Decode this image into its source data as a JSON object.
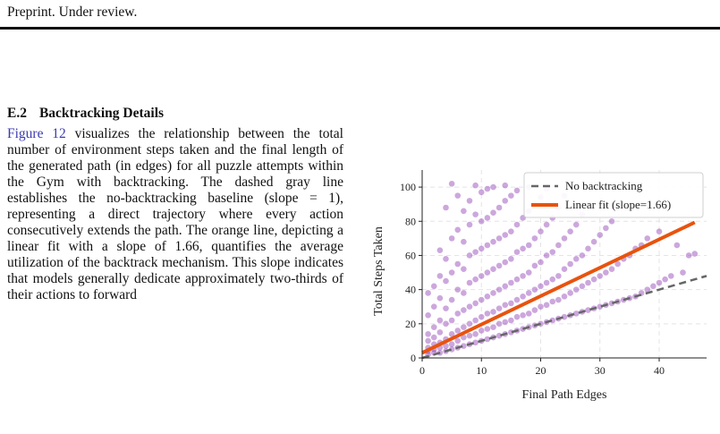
{
  "page": {
    "header": "Preprint. Under review.",
    "section": {
      "number": "E.2",
      "title": "Backtracking Details"
    },
    "body": {
      "figure_ref": "Figure 12",
      "text": " visualizes the relationship between the total number of environment steps taken and the final length of the generated path (in edges) for all puzzle attempts within the Gym with backtracking. The dashed gray line establishes the no-backtracking baseline (slope = 1), representing a direct trajectory where every action consecutively extends the path. The orange line, depicting a linear fit with a slope of 1.66, quantifies the average utilization of the backtrack mechanism. This slope indicates that models generally dedicate approximately two-thirds of their actions to forward"
    }
  },
  "colors": {
    "points": "#8e3cb4",
    "fit_line": "#e8530e",
    "baseline": "#666666",
    "link": "#3b3bb0"
  },
  "chart_data": {
    "type": "scatter",
    "xlabel": "Final Path Edges",
    "ylabel": "Total Steps Taken",
    "xlim": [
      0,
      48
    ],
    "ylim": [
      0,
      110
    ],
    "xticks": [
      0,
      10,
      20,
      30,
      40
    ],
    "yticks": [
      0,
      20,
      40,
      60,
      80,
      100
    ],
    "grid": true,
    "legend_position": "top-right",
    "series": [
      {
        "name": "No backtracking",
        "kind": "line",
        "style": "dashed",
        "slope": 1,
        "intercept": 0,
        "x_range": [
          0,
          48
        ]
      },
      {
        "name": "Linear fit (slope=1.66)",
        "kind": "line",
        "style": "solid",
        "slope": 1.66,
        "intercept": 3,
        "x_range": [
          0,
          46
        ]
      }
    ],
    "points": [
      [
        1,
        2
      ],
      [
        1,
        4
      ],
      [
        1,
        6
      ],
      [
        1,
        10
      ],
      [
        1,
        14
      ],
      [
        1,
        25
      ],
      [
        1,
        38
      ],
      [
        2,
        3
      ],
      [
        2,
        5
      ],
      [
        2,
        8
      ],
      [
        2,
        12
      ],
      [
        2,
        18
      ],
      [
        2,
        30
      ],
      [
        2,
        42
      ],
      [
        3,
        3
      ],
      [
        3,
        6
      ],
      [
        3,
        9
      ],
      [
        3,
        15
      ],
      [
        3,
        22
      ],
      [
        3,
        35
      ],
      [
        3,
        48
      ],
      [
        3,
        63
      ],
      [
        4,
        4
      ],
      [
        4,
        7
      ],
      [
        4,
        11
      ],
      [
        4,
        20
      ],
      [
        4,
        29
      ],
      [
        4,
        45
      ],
      [
        4,
        58
      ],
      [
        4,
        88
      ],
      [
        5,
        5
      ],
      [
        5,
        8
      ],
      [
        5,
        14
      ],
      [
        5,
        22
      ],
      [
        5,
        34
      ],
      [
        5,
        50
      ],
      [
        5,
        70
      ],
      [
        5,
        102
      ],
      [
        6,
        6
      ],
      [
        6,
        10
      ],
      [
        6,
        16
      ],
      [
        6,
        26
      ],
      [
        6,
        40
      ],
      [
        6,
        55
      ],
      [
        6,
        75
      ],
      [
        6,
        95
      ],
      [
        7,
        7
      ],
      [
        7,
        12
      ],
      [
        7,
        18
      ],
      [
        7,
        28
      ],
      [
        7,
        38
      ],
      [
        7,
        52
      ],
      [
        7,
        68
      ],
      [
        7,
        86
      ],
      [
        8,
        8
      ],
      [
        8,
        13
      ],
      [
        8,
        20
      ],
      [
        8,
        30
      ],
      [
        8,
        44
      ],
      [
        8,
        60
      ],
      [
        8,
        78
      ],
      [
        8,
        92
      ],
      [
        9,
        9
      ],
      [
        9,
        14
      ],
      [
        9,
        22
      ],
      [
        9,
        32
      ],
      [
        9,
        46
      ],
      [
        9,
        62
      ],
      [
        9,
        84
      ],
      [
        9,
        101
      ],
      [
        10,
        10
      ],
      [
        10,
        16
      ],
      [
        10,
        24
      ],
      [
        10,
        34
      ],
      [
        10,
        48
      ],
      [
        10,
        64
      ],
      [
        10,
        80
      ],
      [
        10,
        97
      ],
      [
        11,
        11
      ],
      [
        11,
        17
      ],
      [
        11,
        26
      ],
      [
        11,
        36
      ],
      [
        11,
        50
      ],
      [
        11,
        66
      ],
      [
        11,
        82
      ],
      [
        11,
        99
      ],
      [
        12,
        12
      ],
      [
        12,
        18
      ],
      [
        12,
        27
      ],
      [
        12,
        38
      ],
      [
        12,
        52
      ],
      [
        12,
        68
      ],
      [
        12,
        85
      ],
      [
        12,
        100
      ],
      [
        13,
        13
      ],
      [
        13,
        20
      ],
      [
        13,
        29
      ],
      [
        13,
        40
      ],
      [
        13,
        54
      ],
      [
        13,
        70
      ],
      [
        13,
        88
      ],
      [
        14,
        14
      ],
      [
        14,
        21
      ],
      [
        14,
        31
      ],
      [
        14,
        42
      ],
      [
        14,
        56
      ],
      [
        14,
        72
      ],
      [
        14,
        92
      ],
      [
        14,
        101
      ],
      [
        15,
        15
      ],
      [
        15,
        22
      ],
      [
        15,
        32
      ],
      [
        15,
        44
      ],
      [
        15,
        58
      ],
      [
        15,
        74
      ],
      [
        15,
        95
      ],
      [
        16,
        16
      ],
      [
        16,
        24
      ],
      [
        16,
        34
      ],
      [
        16,
        46
      ],
      [
        16,
        62
      ],
      [
        16,
        78
      ],
      [
        16,
        98
      ],
      [
        17,
        17
      ],
      [
        17,
        25
      ],
      [
        17,
        36
      ],
      [
        17,
        48
      ],
      [
        17,
        64
      ],
      [
        17,
        82
      ],
      [
        18,
        18
      ],
      [
        18,
        26
      ],
      [
        18,
        38
      ],
      [
        18,
        50
      ],
      [
        18,
        66
      ],
      [
        18,
        86
      ],
      [
        18,
        100
      ],
      [
        19,
        19
      ],
      [
        19,
        28
      ],
      [
        19,
        40
      ],
      [
        19,
        54
      ],
      [
        19,
        70
      ],
      [
        19,
        90
      ],
      [
        20,
        20
      ],
      [
        20,
        30
      ],
      [
        20,
        42
      ],
      [
        20,
        56
      ],
      [
        20,
        74
      ],
      [
        20,
        94
      ],
      [
        21,
        21
      ],
      [
        21,
        31
      ],
      [
        21,
        44
      ],
      [
        21,
        60
      ],
      [
        21,
        78
      ],
      [
        21,
        99
      ],
      [
        22,
        22
      ],
      [
        22,
        33
      ],
      [
        22,
        46
      ],
      [
        22,
        62
      ],
      [
        22,
        82
      ],
      [
        23,
        23
      ],
      [
        23,
        34
      ],
      [
        23,
        48
      ],
      [
        23,
        66
      ],
      [
        23,
        88
      ],
      [
        24,
        24
      ],
      [
        24,
        36
      ],
      [
        24,
        52
      ],
      [
        24,
        70
      ],
      [
        24,
        95
      ],
      [
        25,
        25
      ],
      [
        25,
        38
      ],
      [
        25,
        55
      ],
      [
        25,
        74
      ],
      [
        26,
        26
      ],
      [
        26,
        40
      ],
      [
        26,
        58
      ],
      [
        26,
        78
      ],
      [
        27,
        27
      ],
      [
        27,
        42
      ],
      [
        27,
        60
      ],
      [
        27,
        84
      ],
      [
        28,
        28
      ],
      [
        28,
        44
      ],
      [
        28,
        64
      ],
      [
        28,
        90
      ],
      [
        29,
        29
      ],
      [
        29,
        46
      ],
      [
        29,
        68
      ],
      [
        30,
        30
      ],
      [
        30,
        48
      ],
      [
        30,
        72
      ],
      [
        31,
        31
      ],
      [
        31,
        50
      ],
      [
        31,
        76
      ],
      [
        32,
        32
      ],
      [
        32,
        52
      ],
      [
        32,
        80
      ],
      [
        33,
        33
      ],
      [
        33,
        55
      ],
      [
        34,
        34
      ],
      [
        34,
        58
      ],
      [
        35,
        35
      ],
      [
        35,
        60
      ],
      [
        36,
        36
      ],
      [
        36,
        64
      ],
      [
        37,
        38
      ],
      [
        37,
        66
      ],
      [
        38,
        40
      ],
      [
        38,
        70
      ],
      [
        39,
        42
      ],
      [
        40,
        44
      ],
      [
        40,
        74
      ],
      [
        41,
        46
      ],
      [
        42,
        48
      ],
      [
        43,
        66
      ],
      [
        44,
        50
      ],
      [
        45,
        60
      ],
      [
        46,
        61
      ]
    ]
  }
}
